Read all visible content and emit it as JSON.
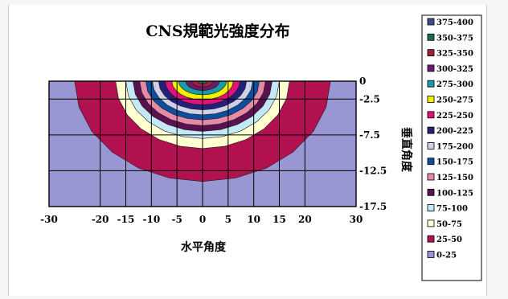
{
  "chart_data": {
    "type": "heatmap",
    "subtype": "filled-contour",
    "title": "CNS規範光強度分布",
    "xlabel": "水平角度",
    "ylabel": "垂直角度",
    "x_ticks": [
      "-30",
      "-20",
      "-15",
      "-10",
      "-5",
      "0",
      "5",
      "10",
      "15",
      "20",
      "30"
    ],
    "y_ticks": [
      "0",
      "-2.5",
      "-7.5",
      "-12.5",
      "-17.5"
    ],
    "x": [
      -30,
      -20,
      -15,
      -10,
      -5,
      0,
      5,
      10,
      15,
      20,
      30
    ],
    "y": [
      0,
      -2.5,
      -7.5,
      -12.5,
      -17.5
    ],
    "xlim": [
      -30,
      30
    ],
    "ylim": [
      -17.5,
      0
    ],
    "grid": true,
    "legend_position": "right",
    "legend": [
      {
        "label": "375-400",
        "min": 375,
        "max": 400,
        "color": "#3f4b8f"
      },
      {
        "label": "350-375",
        "min": 350,
        "max": 375,
        "color": "#1d6b5e"
      },
      {
        "label": "325-350",
        "min": 325,
        "max": 350,
        "color": "#a31f3a"
      },
      {
        "label": "300-325",
        "min": 300,
        "max": 325,
        "color": "#6b1a6e"
      },
      {
        "label": "275-300",
        "min": 275,
        "max": 300,
        "color": "#1a9aa8"
      },
      {
        "label": "250-275",
        "min": 250,
        "max": 275,
        "color": "#f2f200"
      },
      {
        "label": "225-250",
        "min": 225,
        "max": 250,
        "color": "#e3127a"
      },
      {
        "label": "200-225",
        "min": 200,
        "max": 225,
        "color": "#24207c"
      },
      {
        "label": "175-200",
        "min": 175,
        "max": 200,
        "color": "#cfd0ea"
      },
      {
        "label": "150-175",
        "min": 150,
        "max": 175,
        "color": "#0d4f9e"
      },
      {
        "label": "125-150",
        "min": 125,
        "max": 150,
        "color": "#e68aa6"
      },
      {
        "label": "100-125",
        "min": 100,
        "max": 125,
        "color": "#5a1152"
      },
      {
        "label": "75-100",
        "min": 75,
        "max": 100,
        "color": "#c4e9f6"
      },
      {
        "label": "50-75",
        "min": 50,
        "max": 75,
        "color": "#ffffd0"
      },
      {
        "label": "25-50",
        "min": 25,
        "max": 50,
        "color": "#b1124f"
      },
      {
        "label": "0-25",
        "min": 0,
        "max": 25,
        "color": "#9897d3"
      }
    ],
    "contour_bands": [
      {
        "range": "0-25",
        "a": 30,
        "b": 17.5,
        "color": "#9897d3"
      },
      {
        "range": "25-50",
        "a": 25,
        "b": 14,
        "color": "#b1124f"
      },
      {
        "range": "50-75",
        "a": 17,
        "b": 9.4,
        "color": "#ffffd0"
      },
      {
        "range": "75-100",
        "a": 15,
        "b": 8.0,
        "color": "#c4e9f6"
      },
      {
        "range": "100-125",
        "a": 13.6,
        "b": 7.0,
        "color": "#5a1152"
      },
      {
        "range": "125-150",
        "a": 12.3,
        "b": 6.2,
        "color": "#e68aa6"
      },
      {
        "range": "150-175",
        "a": 11.1,
        "b": 5.4,
        "color": "#0d4f9e"
      },
      {
        "range": "175-200",
        "a": 9.8,
        "b": 4.7,
        "color": "#cfd0ea"
      },
      {
        "range": "200-225",
        "a": 8.6,
        "b": 4.0,
        "color": "#24207c"
      },
      {
        "range": "225-250",
        "a": 7.3,
        "b": 3.3,
        "color": "#e3127a"
      },
      {
        "range": "250-275",
        "a": 6.0,
        "b": 2.6,
        "color": "#f2f200"
      },
      {
        "range": "275-300",
        "a": 4.7,
        "b": 1.9,
        "color": "#1a9aa8"
      },
      {
        "range": "300-325",
        "a": 3.3,
        "b": 1.3,
        "color": "#6b1a6e"
      },
      {
        "range": "325-350",
        "a": 2.1,
        "b": 0.8,
        "color": "#a31f3a"
      },
      {
        "range": "350-375",
        "a": 1.0,
        "b": 0.35,
        "color": "#1d6b5e"
      }
    ]
  }
}
